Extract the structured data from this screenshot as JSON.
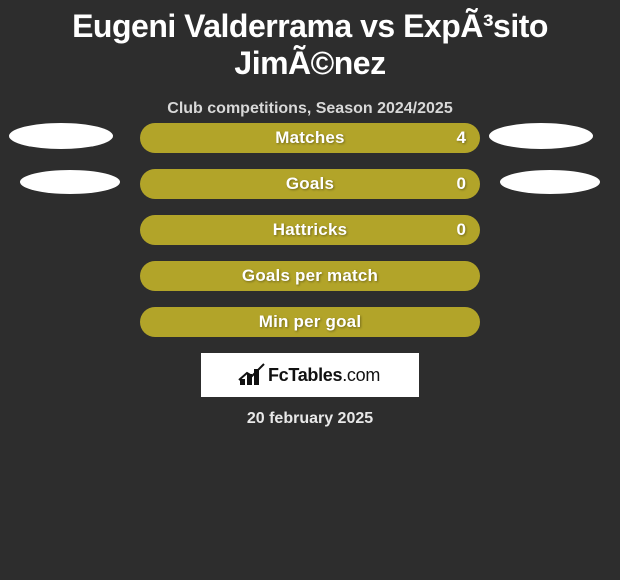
{
  "title": "Eugeni Valderrama vs ExpÃ³sito JimÃ©nez",
  "subtitle": "Club competitions, Season 2024/2025",
  "date": "20 february 2025",
  "logo_text_bold": "FcTables",
  "logo_text_light": ".com",
  "background_color": "#2d2d2d",
  "bar_color": "#b2a429",
  "ellipse_color": "#ffffff",
  "logo_box_color": "#ffffff",
  "bars": [
    {
      "label": "Matches",
      "value": "4",
      "show_value": true,
      "left_ellipse": true,
      "right_ellipse": true,
      "ellipse_variant": 0
    },
    {
      "label": "Goals",
      "value": "0",
      "show_value": true,
      "left_ellipse": true,
      "right_ellipse": true,
      "ellipse_variant": 1
    },
    {
      "label": "Hattricks",
      "value": "0",
      "show_value": true,
      "left_ellipse": false,
      "right_ellipse": false,
      "ellipse_variant": 1
    },
    {
      "label": "Goals per match",
      "value": "",
      "show_value": false,
      "left_ellipse": false,
      "right_ellipse": false,
      "ellipse_variant": 1
    },
    {
      "label": "Min per goal",
      "value": "",
      "show_value": false,
      "left_ellipse": false,
      "right_ellipse": false,
      "ellipse_variant": 1
    }
  ]
}
